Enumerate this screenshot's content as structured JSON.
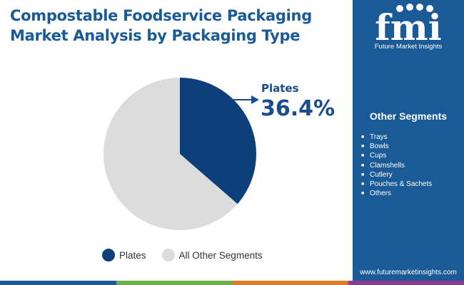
{
  "header": {
    "title_line1": "Compostable Foodservice Packaging",
    "title_line2": "Market Analysis by Packaging Type"
  },
  "chart_data": {
    "type": "pie",
    "title": "Compostable Foodservice Packaging Market Analysis by Packaging Type",
    "slices": [
      {
        "label": "Plates",
        "value": 36.4,
        "color": "#0d3f7a"
      },
      {
        "label": "All Other Segments",
        "value": 63.6,
        "color": "#dcdcdc"
      }
    ],
    "callout": {
      "label": "Plates",
      "value": "36.4%"
    },
    "legend": [
      "Plates",
      "All Other Segments"
    ],
    "legend_position": "bottom"
  },
  "sidebar": {
    "logo_text": "Future Market Insights",
    "segments_title": "Other Segments",
    "segments": [
      "Trays",
      "Bowls",
      "Cups",
      "Clamshells",
      "Cutlery",
      "Pouches & Sachets",
      "Others"
    ],
    "bullet": "■",
    "website": "www.futuremarketinsights.com"
  },
  "colors": {
    "title": "#1a5a96",
    "sidebar_bg": "#1a5a96",
    "accent_dark_blue": "#0d3f7a",
    "bottom_bar": [
      "#1a5a96",
      "#6ab04c",
      "#e07b2a",
      "#8c3a8c"
    ]
  }
}
